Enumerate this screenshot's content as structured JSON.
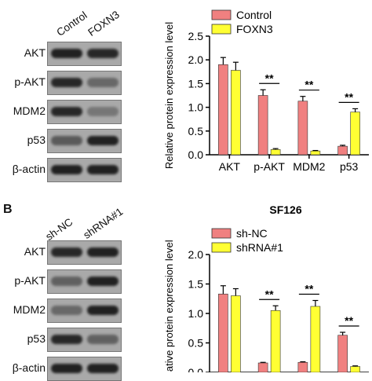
{
  "panelA": {
    "lanes": [
      "Control",
      "FOXN3"
    ],
    "rows": [
      {
        "label": "AKT",
        "bands": [
          0.95,
          0.9
        ]
      },
      {
        "label": "p-AKT",
        "bands": [
          0.9,
          0.45
        ]
      },
      {
        "label": "MDM2",
        "bands": [
          0.9,
          0.35
        ]
      },
      {
        "label": "p53",
        "bands": [
          0.55,
          0.95
        ]
      },
      {
        "label": "β-actin",
        "bands": [
          0.95,
          0.95
        ]
      }
    ]
  },
  "panelB": {
    "letter": "B",
    "lanes": [
      "sh-NC",
      "shRNA#1"
    ],
    "rows": [
      {
        "label": "AKT",
        "bands": [
          0.9,
          0.95
        ]
      },
      {
        "label": "p-AKT",
        "bands": [
          0.5,
          0.95
        ]
      },
      {
        "label": "MDM2",
        "bands": [
          0.45,
          0.95
        ]
      },
      {
        "label": "p53",
        "bands": [
          0.9,
          0.5
        ]
      },
      {
        "label": "β-actin",
        "bands": [
          0.95,
          0.95
        ]
      }
    ]
  },
  "chart_data": [
    {
      "type": "bar",
      "title": "",
      "ylabel": "Relative protein expression level",
      "ylim": [
        0,
        2.5
      ],
      "yticks": [
        "0.0",
        "0.5",
        "1.0",
        "1.5",
        "2.0",
        "2.5"
      ],
      "categories": [
        "AKT",
        "p-AKT",
        "MDM2",
        "p53"
      ],
      "series": [
        {
          "name": "Control",
          "color": "#f08080",
          "values": [
            1.9,
            1.25,
            1.13,
            0.18
          ],
          "errors": [
            0.15,
            0.12,
            0.1,
            0.02
          ]
        },
        {
          "name": "FOXN3",
          "color": "#ffff33",
          "values": [
            1.78,
            0.11,
            0.08,
            0.9
          ],
          "errors": [
            0.17,
            0.02,
            0.01,
            0.07
          ]
        }
      ],
      "significance": [
        "",
        "**",
        "**",
        "**"
      ],
      "legend": "top-left"
    },
    {
      "type": "bar",
      "title": "SF126",
      "ylabel": "Relative protein expression level",
      "ylim": [
        0,
        2.0
      ],
      "yticks": [
        "0.0",
        "0.5",
        "1.0",
        "1.5",
        "2.0"
      ],
      "categories": [
        "AKT",
        "p-AKT",
        "MDM2",
        "p53"
      ],
      "series": [
        {
          "name": "sh-NC",
          "color": "#f08080",
          "values": [
            1.33,
            0.16,
            0.17,
            0.63
          ],
          "errors": [
            0.14,
            0.01,
            0.01,
            0.05
          ]
        },
        {
          "name": "shRNA#1",
          "color": "#ffff33",
          "values": [
            1.3,
            1.05,
            1.12,
            0.1
          ],
          "errors": [
            0.12,
            0.08,
            0.1,
            0.01
          ]
        }
      ],
      "significance": [
        "",
        "**",
        "**",
        "**"
      ],
      "legend": "top-left"
    }
  ]
}
